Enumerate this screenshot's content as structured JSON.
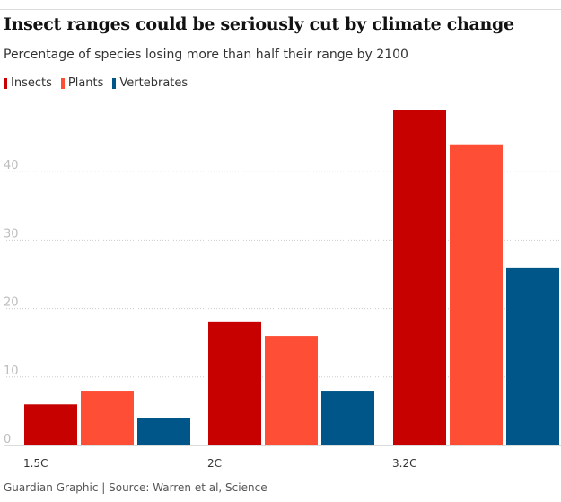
{
  "chart_data": {
    "type": "bar",
    "title": "Insect ranges could be seriously cut by climate change",
    "subtitle": "Percentage of species losing more than half their range by 2100",
    "categories": [
      "1.5C",
      "2C",
      "3.2C"
    ],
    "series": [
      {
        "name": "Insects",
        "color": "#c70000",
        "values": [
          6,
          18,
          49
        ]
      },
      {
        "name": "Plants",
        "color": "#ff4e36",
        "values": [
          8,
          16,
          44
        ]
      },
      {
        "name": "Vertebrates",
        "color": "#005689",
        "values": [
          4,
          8,
          26
        ]
      }
    ],
    "ylim": [
      0,
      50
    ],
    "yticks": [
      0,
      10,
      20,
      30,
      40
    ],
    "grid": true,
    "legend": "top-left"
  },
  "footer": {
    "source": "Guardian Graphic | Source: Warren et al, Science"
  }
}
